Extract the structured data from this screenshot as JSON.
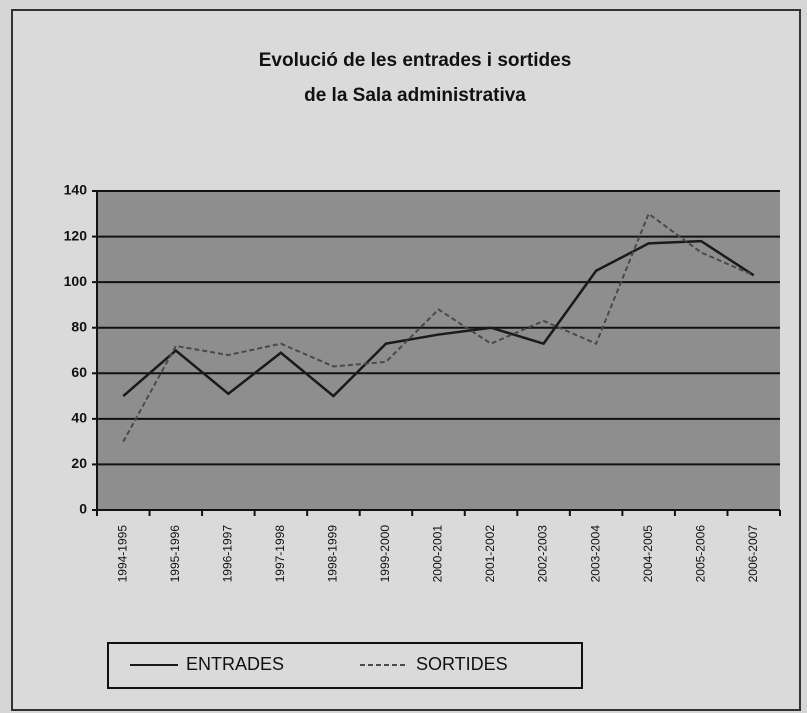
{
  "chart_data": {
    "type": "line",
    "title": [
      "Evolució de les entrades i sortides",
      "de la Sala administrativa"
    ],
    "categories": [
      "1994-1995",
      "1995-1996",
      "1996-1997",
      "1997-1998",
      "1998-1999",
      "1999-2000",
      "2000-2001",
      "2001-2002",
      "2002-2003",
      "2003-2004",
      "2004-2005",
      "2005-2006",
      "2006-2007"
    ],
    "series": [
      {
        "name": "ENTRADES",
        "color": "#1a1a1a",
        "style": "solid",
        "values": [
          50,
          70,
          51,
          69,
          50,
          73,
          77,
          80,
          73,
          105,
          117,
          118,
          103
        ]
      },
      {
        "name": "SORTIDES",
        "color": "#4a4a4a",
        "style": "dashed",
        "values": [
          30,
          72,
          68,
          73,
          63,
          65,
          88,
          73,
          83,
          73,
          130,
          113,
          103
        ]
      }
    ],
    "ylim": [
      0,
      140
    ],
    "yticks": [
      0,
      20,
      40,
      60,
      80,
      100,
      120,
      140
    ],
    "grid": true,
    "legend": "bottom"
  }
}
